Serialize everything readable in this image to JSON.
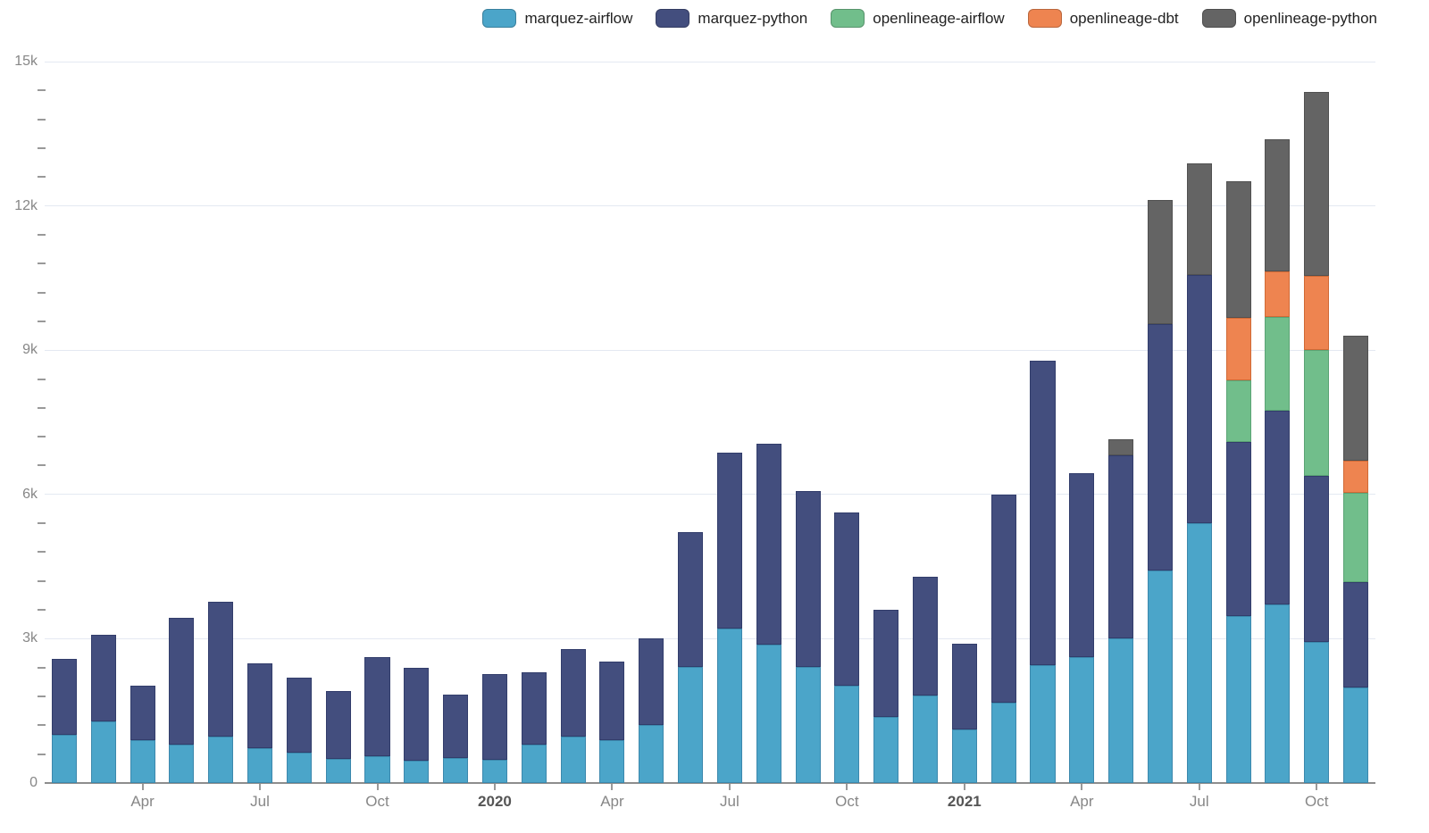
{
  "chart": {
    "background": "#ffffff",
    "grid_color": "#e4e9f2",
    "axis_line_color": "#8d8d8d",
    "tick_mark_color": "#999999",
    "axis_label_color": "#878787",
    "year_label_color": "#555555",
    "legend_text_color": "#222222"
  },
  "legend": {
    "items": [
      {
        "label": "marquez-airflow",
        "color": "#4BA5C9"
      },
      {
        "label": "marquez-python",
        "color": "#434E7E"
      },
      {
        "label": "openlineage-airflow",
        "color": "#71BE8B"
      },
      {
        "label": "openlineage-dbt",
        "color": "#EE8450"
      },
      {
        "label": "openlineage-python",
        "color": "#646464"
      }
    ]
  },
  "chart_data": {
    "type": "bar",
    "stacked": true,
    "title": "",
    "xlabel": "",
    "ylabel": "",
    "grid": true,
    "legend_position": "top-right",
    "ylim": [
      0,
      15000
    ],
    "y_minor_step": 600,
    "y_ticks": [
      {
        "value": 0,
        "label": "0"
      },
      {
        "value": 3000,
        "label": "3k"
      },
      {
        "value": 6000,
        "label": "6k"
      },
      {
        "value": 9000,
        "label": "9k"
      },
      {
        "value": 12000,
        "label": "12k"
      },
      {
        "value": 15000,
        "label": "15k"
      }
    ],
    "x": [
      "Feb 2019",
      "Mar 2019",
      "Apr 2019",
      "May 2019",
      "Jun 2019",
      "Jul 2019",
      "Aug 2019",
      "Sep 2019",
      "Oct 2019",
      "Nov 2019",
      "Dec 2019",
      "Jan 2020",
      "Feb 2020",
      "Mar 2020",
      "Apr 2020",
      "May 2020",
      "Jun 2020",
      "Jul 2020",
      "Aug 2020",
      "Sep 2020",
      "Oct 2020",
      "Nov 2020",
      "Dec 2020",
      "Jan 2021",
      "Feb 2021",
      "Mar 2021",
      "Apr 2021",
      "May 2021",
      "Jun 2021",
      "Jul 2021",
      "Aug 2021",
      "Sep 2021",
      "Oct 2021",
      "Nov 2021"
    ],
    "x_ticks": [
      {
        "index": 2,
        "label": "Apr",
        "bold": false
      },
      {
        "index": 5,
        "label": "Jul",
        "bold": false
      },
      {
        "index": 8,
        "label": "Oct",
        "bold": false
      },
      {
        "index": 11,
        "label": "2020",
        "bold": true
      },
      {
        "index": 14,
        "label": "Apr",
        "bold": false
      },
      {
        "index": 17,
        "label": "Jul",
        "bold": false
      },
      {
        "index": 20,
        "label": "Oct",
        "bold": false
      },
      {
        "index": 23,
        "label": "2021",
        "bold": true
      },
      {
        "index": 26,
        "label": "Apr",
        "bold": false
      },
      {
        "index": 29,
        "label": "Jul",
        "bold": false
      },
      {
        "index": 32,
        "label": "Oct",
        "bold": false
      }
    ],
    "series": [
      {
        "name": "marquez-airflow",
        "color": "#4BA5C9",
        "border": "#3C88AD",
        "values": [
          1000,
          1280,
          900,
          800,
          970,
          720,
          640,
          500,
          550,
          470,
          520,
          480,
          790,
          970,
          900,
          1200,
          2410,
          3220,
          2870,
          2410,
          2030,
          1370,
          1820,
          1110,
          1670,
          2450,
          2620,
          3010,
          4420,
          5410,
          3480,
          3710,
          2930,
          1990
        ]
      },
      {
        "name": "marquez-python",
        "color": "#434E7E",
        "border": "#323D6B",
        "values": [
          1590,
          1810,
          1120,
          2640,
          2800,
          1760,
          1550,
          1420,
          2060,
          1920,
          1310,
          1790,
          1510,
          1810,
          1630,
          1810,
          2810,
          3650,
          4190,
          3660,
          3600,
          2230,
          2460,
          1780,
          4320,
          6340,
          3830,
          3800,
          5120,
          5160,
          3620,
          4030,
          3450,
          2180
        ]
      },
      {
        "name": "openlineage-airflow",
        "color": "#71BE8B",
        "border": "#5BA475",
        "values": [
          0,
          0,
          0,
          0,
          0,
          0,
          0,
          0,
          0,
          0,
          0,
          0,
          0,
          0,
          0,
          0,
          0,
          0,
          0,
          0,
          0,
          0,
          0,
          0,
          0,
          0,
          0,
          0,
          0,
          0,
          1270,
          1950,
          2620,
          1860
        ]
      },
      {
        "name": "openlineage-dbt",
        "color": "#EE8450",
        "border": "#D06A36",
        "values": [
          0,
          0,
          0,
          0,
          0,
          0,
          0,
          0,
          0,
          0,
          0,
          0,
          0,
          0,
          0,
          0,
          0,
          0,
          0,
          0,
          0,
          0,
          0,
          0,
          0,
          0,
          0,
          0,
          0,
          0,
          1310,
          940,
          1540,
          680
        ]
      },
      {
        "name": "openlineage-python",
        "color": "#646464",
        "border": "#515151",
        "values": [
          0,
          0,
          0,
          0,
          0,
          0,
          0,
          0,
          0,
          0,
          0,
          0,
          0,
          0,
          0,
          0,
          0,
          0,
          0,
          0,
          0,
          0,
          0,
          0,
          0,
          0,
          0,
          340,
          2580,
          2320,
          2830,
          2760,
          3830,
          2600
        ]
      }
    ]
  }
}
